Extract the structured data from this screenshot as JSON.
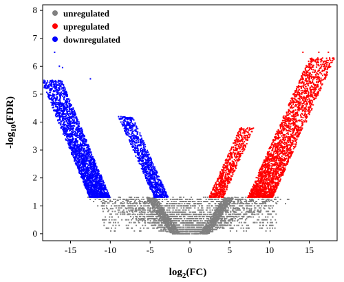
{
  "chart_data": {
    "type": "scatter",
    "xlabel": {
      "main": "log",
      "sub": "2",
      "rest": "(FC)"
    },
    "ylabel": {
      "main": "-log",
      "sub": "10",
      "rest": "(FDR)"
    },
    "xlim": [
      -18.5,
      18.5
    ],
    "ylim": [
      -0.25,
      8.2
    ],
    "x_ticks": [
      -15,
      -10,
      -5,
      0,
      5,
      10,
      15
    ],
    "y_ticks": [
      0,
      1,
      2,
      3,
      4,
      5,
      6,
      7,
      8
    ],
    "grid": false,
    "legend_position": "top-left",
    "significance_threshold_y": 1.3,
    "series": [
      {
        "name": "unregulated",
        "color": "#808080"
      },
      {
        "name": "upregulated",
        "color": "#ff0000"
      },
      {
        "name": "downregulated",
        "color": "#0000ff"
      }
    ],
    "point_groups": {
      "unregulated_v_branches": {
        "series": "unregulated",
        "y_range": [
          0,
          1.3
        ],
        "left_arm_x_at_y0": -2,
        "right_arm_x_at_y0": 2,
        "inner_slope": 3.2,
        "outer_slope": 2.6
      },
      "unregulated_scatter_floor": {
        "series": "unregulated",
        "x_range": [
          -11,
          11
        ],
        "y_range": [
          0.1,
          1.3
        ]
      },
      "upregulated_inner_band": {
        "series": "upregulated",
        "x_range": [
          3,
          8.5
        ],
        "y_range": [
          1.3,
          3.8
        ]
      },
      "upregulated_outer_band": {
        "series": "upregulated",
        "x_range": [
          7.5,
          17.5
        ],
        "y_range": [
          1.3,
          6.5
        ]
      },
      "downregulated_inner_band": {
        "series": "downregulated",
        "x_range": [
          -9,
          -3.2
        ],
        "y_range": [
          1.3,
          4.2
        ]
      },
      "downregulated_outer_band": {
        "series": "downregulated",
        "x_range": [
          -17,
          -11
        ],
        "y_range": [
          1.3,
          6.5
        ]
      }
    }
  }
}
